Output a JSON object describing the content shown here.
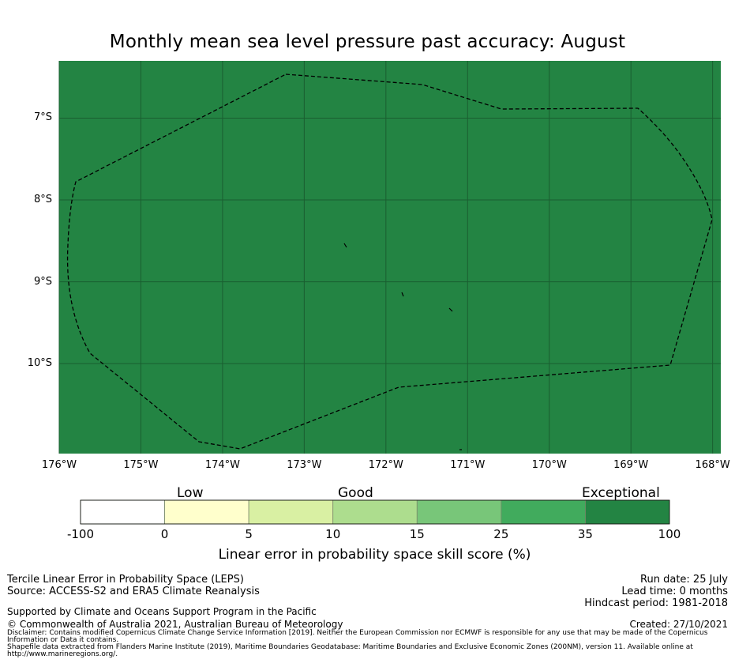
{
  "title": "Monthly mean sea level pressure past accuracy: August",
  "map": {
    "fill_color": "#238443",
    "grid_color": "#1a5e30",
    "border_style": "dashed",
    "lat_ticks": [
      {
        "value": -7,
        "label": "7°S"
      },
      {
        "value": -8,
        "label": "8°S"
      },
      {
        "value": -9,
        "label": "9°S"
      },
      {
        "value": -10,
        "label": "10°S"
      }
    ],
    "lon_ticks": [
      {
        "value": -176,
        "label": "176°W"
      },
      {
        "value": -175,
        "label": "175°W"
      },
      {
        "value": -174,
        "label": "174°W"
      },
      {
        "value": -173,
        "label": "173°W"
      },
      {
        "value": -172,
        "label": "172°W"
      },
      {
        "value": -171,
        "label": "171°W"
      },
      {
        "value": -170,
        "label": "170°W"
      },
      {
        "value": -169,
        "label": "169°W"
      },
      {
        "value": -168,
        "label": "168°W"
      }
    ],
    "extent": {
      "lon_min": -176,
      "lon_max": -167.9,
      "lat_min": -11.1,
      "lat_max": -6.3
    }
  },
  "colorbar": {
    "categories": [
      "Low",
      "Good",
      "Exceptional"
    ],
    "ticks": [
      "-100",
      "0",
      "5",
      "10",
      "15",
      "25",
      "35",
      "100"
    ],
    "colors": [
      "#ffffff",
      "#ffffcc",
      "#d9f0a3",
      "#addd8e",
      "#78c679",
      "#41ab5d",
      "#238443"
    ],
    "label": "Linear error in probability space skill score (%)"
  },
  "footer": {
    "left_lines": [
      "Tercile Linear Error in Probability Space (LEPS)",
      "Source: ACCESS-S2 and ERA5 Climate Reanalysis"
    ],
    "support": "Supported by Climate and Oceans Support Program in the Pacific",
    "copyright": "© Commonwealth of Australia 2021, Australian Bureau of Meteorology",
    "right_lines": [
      "Run date: 25 July",
      "Lead time: 0 months",
      "Hindcast period: 1981-2018"
    ],
    "created": "Created: 27/10/2021",
    "disclaimer": "Disclaimer: Contains modified Copernicus Climate Change Service Information [2019]. Neither the European Commission nor ECMWF is responsible for any use that may be made of the Copernicus Information or Data it contains.",
    "shapefile": "Shapefile data extracted from Flanders Marine Institute (2019), Maritime Boundaries Geodatabase: Maritime Boundaries and Exclusive Economic Zones (200NM), version 11. Available online at http://www.marineregions.org/."
  }
}
